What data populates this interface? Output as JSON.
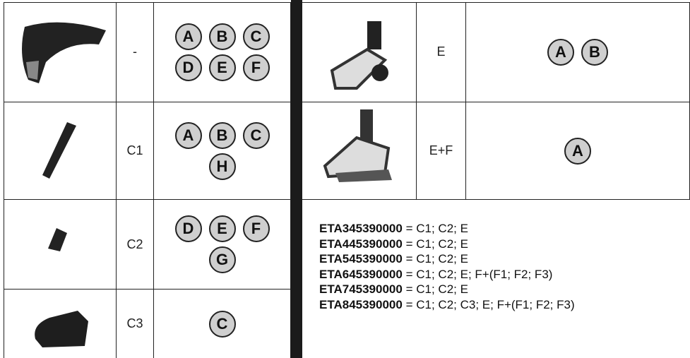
{
  "left_rows": [
    {
      "code": "-",
      "letters": [
        "A",
        "B",
        "C",
        "D",
        "E",
        "F"
      ]
    },
    {
      "code": "C1",
      "letters": [
        "A",
        "B",
        "C",
        "H"
      ]
    },
    {
      "code": "C2",
      "letters": [
        "D",
        "E",
        "F",
        "G"
      ]
    },
    {
      "code": "C3",
      "letters": [
        "C"
      ]
    }
  ],
  "right_rows": [
    {
      "code": "E",
      "letters": [
        "A",
        "B"
      ]
    },
    {
      "code": "E+F",
      "letters": [
        "A"
      ]
    }
  ],
  "models": [
    {
      "code": "ETA345390000",
      "sign": "=",
      "accessories": "C1; C2; E"
    },
    {
      "code": "ETA445390000",
      "sign": "=",
      "accessories": "C1; C2; E"
    },
    {
      "code": "ETA545390000",
      "sign": "=",
      "accessories": "C1; C2; E"
    },
    {
      "code": "ETA645390000",
      "sign": "=",
      "accessories": "C1; C2; E; F+(F1; F2; F3)"
    },
    {
      "code": "ETA745390000",
      "sign": "=",
      "accessories": "C1; C2; E"
    },
    {
      "code": "ETA845390000",
      "sign": "=",
      "accessories": "C1; C2; C3; E; F+(F1; F2; F3)"
    }
  ]
}
